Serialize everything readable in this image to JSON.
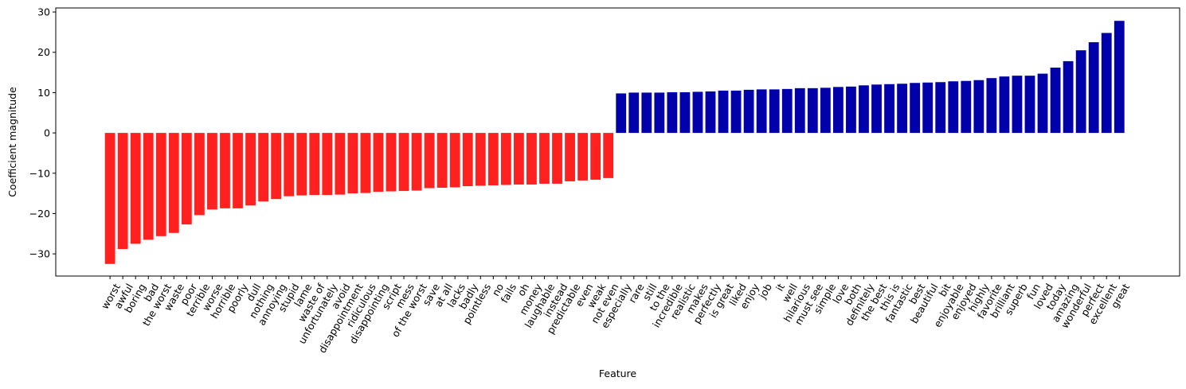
{
  "chart_data": {
    "type": "bar",
    "title": "",
    "xlabel": "Feature",
    "ylabel": "Coefficient magnitude",
    "ylim": [
      -35.5,
      31
    ],
    "yticks": [
      -30,
      -20,
      -10,
      0,
      10,
      20,
      30
    ],
    "grid": false,
    "legend": "none",
    "negative_color": "#ff2020",
    "positive_color": "#0000aa",
    "categories": [
      "worst",
      "awful",
      "boring",
      "bad",
      "the worst",
      "waste",
      "poor",
      "terrible",
      "worse",
      "horrible",
      "poorly",
      "dull",
      "nothing",
      "annoying",
      "stupid",
      "lame",
      "waste of",
      "unfortunately",
      "avoid",
      "disappointment",
      "ridiculous",
      "disappointing",
      "script",
      "mess",
      "of the worst",
      "save",
      "at all",
      "lacks",
      "badly",
      "pointless",
      "no",
      "fails",
      "oh",
      "money",
      "laughable",
      "instead",
      "predictable",
      "even",
      "weak",
      "not even",
      "especially",
      "rare",
      "still",
      "to the",
      "incredible",
      "realistic",
      "makes",
      "perfectly",
      "is great",
      "liked",
      "enjoy",
      "job",
      "it",
      "well",
      "hilarious",
      "must see",
      "simple",
      "love",
      "both",
      "definitely",
      "the best",
      "this is",
      "fantastic",
      "best",
      "beautiful",
      "bit",
      "enjoyable",
      "enjoyed",
      "highly",
      "favorite",
      "brilliant",
      "superb",
      "fun",
      "loved",
      "today",
      "amazing",
      "wonderful",
      "perfect",
      "excellent",
      "great"
    ],
    "values": [
      -32.5,
      -28.8,
      -27.5,
      -26.5,
      -25.6,
      -24.8,
      -22.7,
      -20.4,
      -19.0,
      -18.7,
      -18.7,
      -18.0,
      -17.0,
      -16.4,
      -15.7,
      -15.5,
      -15.4,
      -15.4,
      -15.3,
      -15.0,
      -14.9,
      -14.6,
      -14.5,
      -14.4,
      -14.3,
      -13.7,
      -13.6,
      -13.5,
      -13.2,
      -13.1,
      -13.0,
      -12.9,
      -12.8,
      -12.8,
      -12.6,
      -12.6,
      -12.0,
      -11.8,
      -11.6,
      -11.2,
      9.8,
      10.0,
      10.0,
      10.0,
      10.1,
      10.1,
      10.2,
      10.3,
      10.5,
      10.5,
      10.7,
      10.8,
      10.8,
      10.9,
      11.1,
      11.1,
      11.2,
      11.4,
      11.5,
      11.8,
      12.0,
      12.1,
      12.2,
      12.4,
      12.5,
      12.6,
      12.8,
      12.9,
      13.1,
      13.6,
      14.0,
      14.2,
      14.2,
      14.7,
      16.2,
      17.8,
      20.5,
      22.5,
      24.8,
      27.8
    ]
  }
}
